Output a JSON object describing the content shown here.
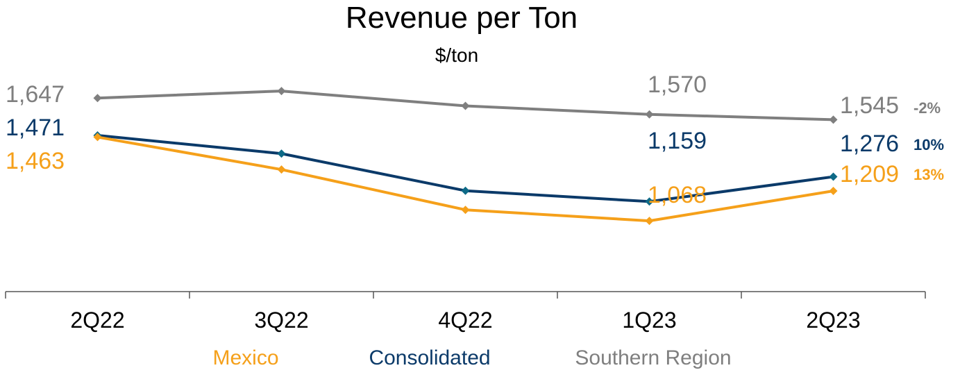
{
  "chart_data": {
    "type": "line",
    "title": "Revenue per Ton",
    "subtitle": "$/ton",
    "categories": [
      "2Q22",
      "3Q22",
      "4Q22",
      "1Q23",
      "2Q23"
    ],
    "series": [
      {
        "name": "Southern Region",
        "color": "#7f7f7f",
        "values": [
          1647,
          1680,
          1610,
          1570,
          1545
        ],
        "data_labels": [
          "1,647",
          null,
          null,
          "1,570",
          "1,545"
        ],
        "change_label": "-2%"
      },
      {
        "name": "Consolidated",
        "color": "#0b3a69",
        "marker_color": "#0e6a87",
        "values": [
          1471,
          1385,
          1210,
          1159,
          1276
        ],
        "data_labels": [
          "1,471",
          null,
          null,
          "1,159",
          "1,276"
        ],
        "change_label": "10%"
      },
      {
        "name": "Mexico",
        "color": "#f5a01a",
        "values": [
          1463,
          1310,
          1120,
          1068,
          1209
        ],
        "data_labels": [
          "1,463",
          null,
          null,
          "1,068",
          "1,209"
        ],
        "change_label": "13%"
      }
    ],
    "legend": [
      "Mexico",
      "Consolidated",
      "Southern Region"
    ],
    "legend_position": "bottom",
    "grid": false
  }
}
